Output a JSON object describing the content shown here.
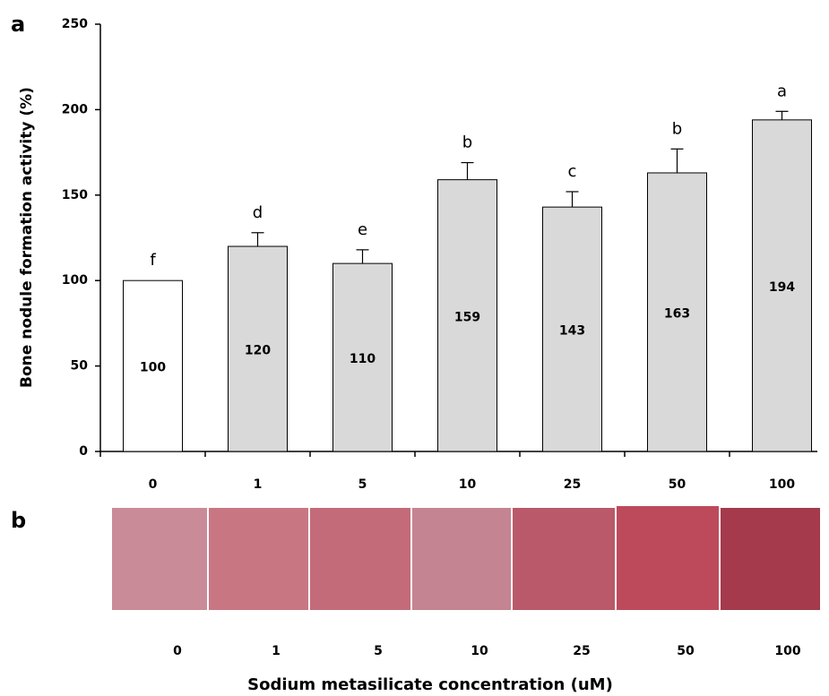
{
  "chart_data": {
    "type": "bar",
    "panel_labels": [
      "a",
      "b"
    ],
    "y_label": "Bone nodule formation activity  (%)",
    "x_label": "Sodium metasilicate concentration  (uM)",
    "categories": [
      "0",
      "1",
      "5",
      "10",
      "25",
      "50",
      "100"
    ],
    "values": [
      100,
      120,
      110,
      159,
      143,
      163,
      194
    ],
    "errors": [
      null,
      8,
      8,
      10,
      9,
      14,
      5
    ],
    "significance": [
      "f",
      "d",
      "e",
      "b",
      "c",
      "b",
      "a"
    ],
    "colors": [
      "#ffffff",
      "#d9d9d9",
      "#d9d9d9",
      "#d9d9d9",
      "#d9d9d9",
      "#d9d9d9",
      "#d9d9d9"
    ],
    "ylim": [
      0,
      250
    ],
    "yticks": [
      0,
      50,
      100,
      150,
      200,
      250
    ],
    "grid": false
  }
}
